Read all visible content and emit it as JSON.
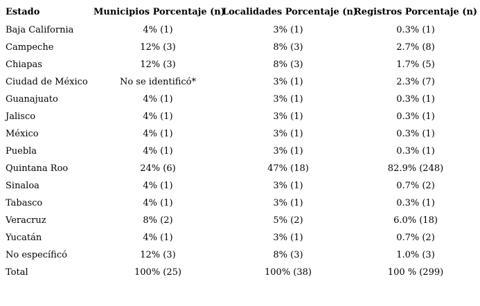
{
  "colors": {
    "background": "#ffffff",
    "text": "#000000"
  },
  "table": {
    "columns": [
      "Estado",
      "Municipios Porcentaje (n)",
      "Localidades Porcentaje (n)",
      "Registros Porcentaje (n)"
    ],
    "rows": [
      {
        "estado": "Baja California",
        "municipios": "4% (1)",
        "localidades": "3% (1)",
        "registros": "0.3% (1)"
      },
      {
        "estado": "Campeche",
        "municipios": "12% (3)",
        "localidades": "8% (3)",
        "registros": "2.7% (8)"
      },
      {
        "estado": "Chiapas",
        "municipios": "12% (3)",
        "localidades": "8% (3)",
        "registros": "1.7% (5)"
      },
      {
        "estado": "Ciudad de México",
        "municipios": "No se identificó*",
        "localidades": "3% (1)",
        "registros": "2.3% (7)"
      },
      {
        "estado": "Guanajuato",
        "municipios": "4% (1)",
        "localidades": "3% (1)",
        "registros": "0.3% (1)"
      },
      {
        "estado": "Jalisco",
        "municipios": "4% (1)",
        "localidades": "3% (1)",
        "registros": "0.3% (1)"
      },
      {
        "estado": "México",
        "municipios": "4% (1)",
        "localidades": "3% (1)",
        "registros": "0.3% (1)"
      },
      {
        "estado": "Puebla",
        "municipios": "4% (1)",
        "localidades": "3% (1)",
        "registros": "0.3% (1)"
      },
      {
        "estado": "Quintana Roo",
        "municipios": "24% (6)",
        "localidades": "47% (18)",
        "registros": "82.9% (248)"
      },
      {
        "estado": "Sinaloa",
        "municipios": "4% (1)",
        "localidades": "3% (1)",
        "registros": "0.7% (2)"
      },
      {
        "estado": "Tabasco",
        "municipios": "4% (1)",
        "localidades": "3% (1)",
        "registros": "0.3% (1)"
      },
      {
        "estado": "Veracruz",
        "municipios": "8% (2)",
        "localidades": "5% (2)",
        "registros": "6.0% (18)"
      },
      {
        "estado": "Yucatán",
        "municipios": "4% (1)",
        "localidades": "3% (1)",
        "registros": "0.7% (2)"
      },
      {
        "estado": "No específicó",
        "municipios": "12% (3)",
        "localidades": "8% (3)",
        "registros": "1.0% (3)"
      },
      {
        "estado": "Total",
        "municipios": "100% (25)",
        "localidades": "100% (38)",
        "registros": "100 % (299)"
      }
    ]
  }
}
